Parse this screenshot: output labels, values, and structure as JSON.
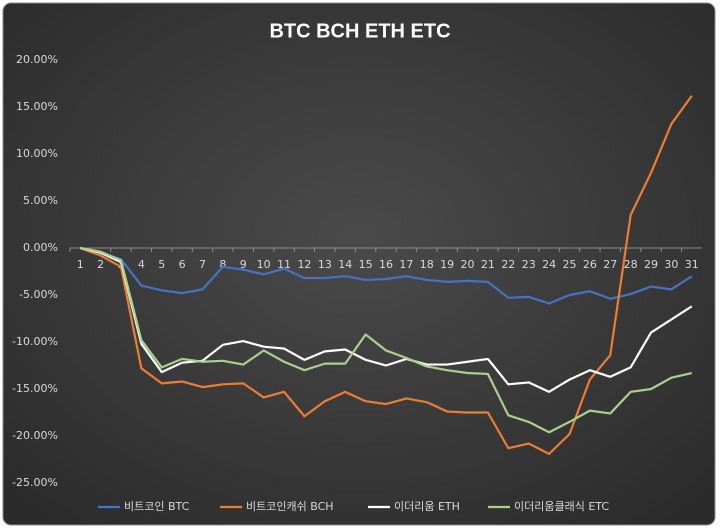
{
  "chart_data": {
    "type": "line",
    "title": "BTC BCH ETH ETC",
    "categories": [
      1,
      2,
      3,
      4,
      5,
      6,
      7,
      8,
      9,
      10,
      11,
      12,
      13,
      14,
      15,
      16,
      17,
      18,
      19,
      20,
      21,
      22,
      23,
      24,
      25,
      26,
      27,
      28,
      29,
      30,
      31
    ],
    "ylim": [
      -25,
      20
    ],
    "yticks": [
      {
        "value": -25,
        "label": "-25.00%"
      },
      {
        "value": -20,
        "label": "-20.00%"
      },
      {
        "value": -15,
        "label": "-15.00%"
      },
      {
        "value": -10,
        "label": "-10.00%"
      },
      {
        "value": -5,
        "label": "-5.00%"
      },
      {
        "value": 0,
        "label": "0.00%"
      },
      {
        "value": 5,
        "label": "5.00%"
      },
      {
        "value": 10,
        "label": "10.00%"
      },
      {
        "value": 15,
        "label": "15.00%"
      },
      {
        "value": 20,
        "label": "20.00%"
      }
    ],
    "grid": false,
    "legend": "bottom",
    "series": [
      {
        "name": "비트코인 BTC",
        "color": "#4472c4",
        "values": [
          0,
          -0.5,
          -1.2,
          -4,
          -4.5,
          -4.8,
          -4.4,
          -2,
          -2.3,
          -2.8,
          -2.2,
          -3.2,
          -3.2,
          -3,
          -3.4,
          -3.3,
          -3,
          -3.4,
          -3.6,
          -3.5,
          -3.6,
          -5.3,
          -5.2,
          -5.9,
          -5,
          -4.6,
          -5.4,
          -4.9,
          -4.1,
          -4.4,
          -3
        ]
      },
      {
        "name": "비트코인캐쉬 BCH",
        "color": "#ed7d31",
        "values": [
          0,
          -0.8,
          -2,
          -12.8,
          -14.4,
          -14.2,
          -14.8,
          -14.5,
          -14.4,
          -15.9,
          -15.3,
          -17.9,
          -16.3,
          -15.3,
          -16.3,
          -16.6,
          -16,
          -16.4,
          -17.4,
          -17.5,
          -17.5,
          -21.3,
          -20.8,
          -21.9,
          -19.8,
          -14,
          -11.4,
          3.5,
          8,
          13.2,
          16.2
        ]
      },
      {
        "name": "이더리움 ETH",
        "color": "#ffffff",
        "values": [
          0,
          -0.5,
          -1.5,
          -10.2,
          -13.2,
          -12.2,
          -12,
          -10.3,
          -9.9,
          -10.5,
          -10.7,
          -11.9,
          -11,
          -10.8,
          -11.9,
          -12.5,
          -11.8,
          -12.4,
          -12.4,
          -12.1,
          -11.8,
          -14.5,
          -14.3,
          -15.3,
          -14,
          -13,
          -13.7,
          -12.7,
          -9,
          -7.6,
          -6.2
        ]
      },
      {
        "name": "이더리움클래식 ETC",
        "color": "#a9d18e",
        "values": [
          0,
          -0.4,
          -1.3,
          -9.8,
          -12.7,
          -11.8,
          -12.1,
          -12,
          -12.4,
          -10.9,
          -12.1,
          -13,
          -12.3,
          -12.3,
          -9.2,
          -10.9,
          -11.7,
          -12.6,
          -13,
          -13.3,
          -13.4,
          -17.8,
          -18.5,
          -19.6,
          -18.5,
          -17.3,
          -17.6,
          -15.3,
          -15,
          -13.8,
          -13.3
        ]
      }
    ]
  }
}
